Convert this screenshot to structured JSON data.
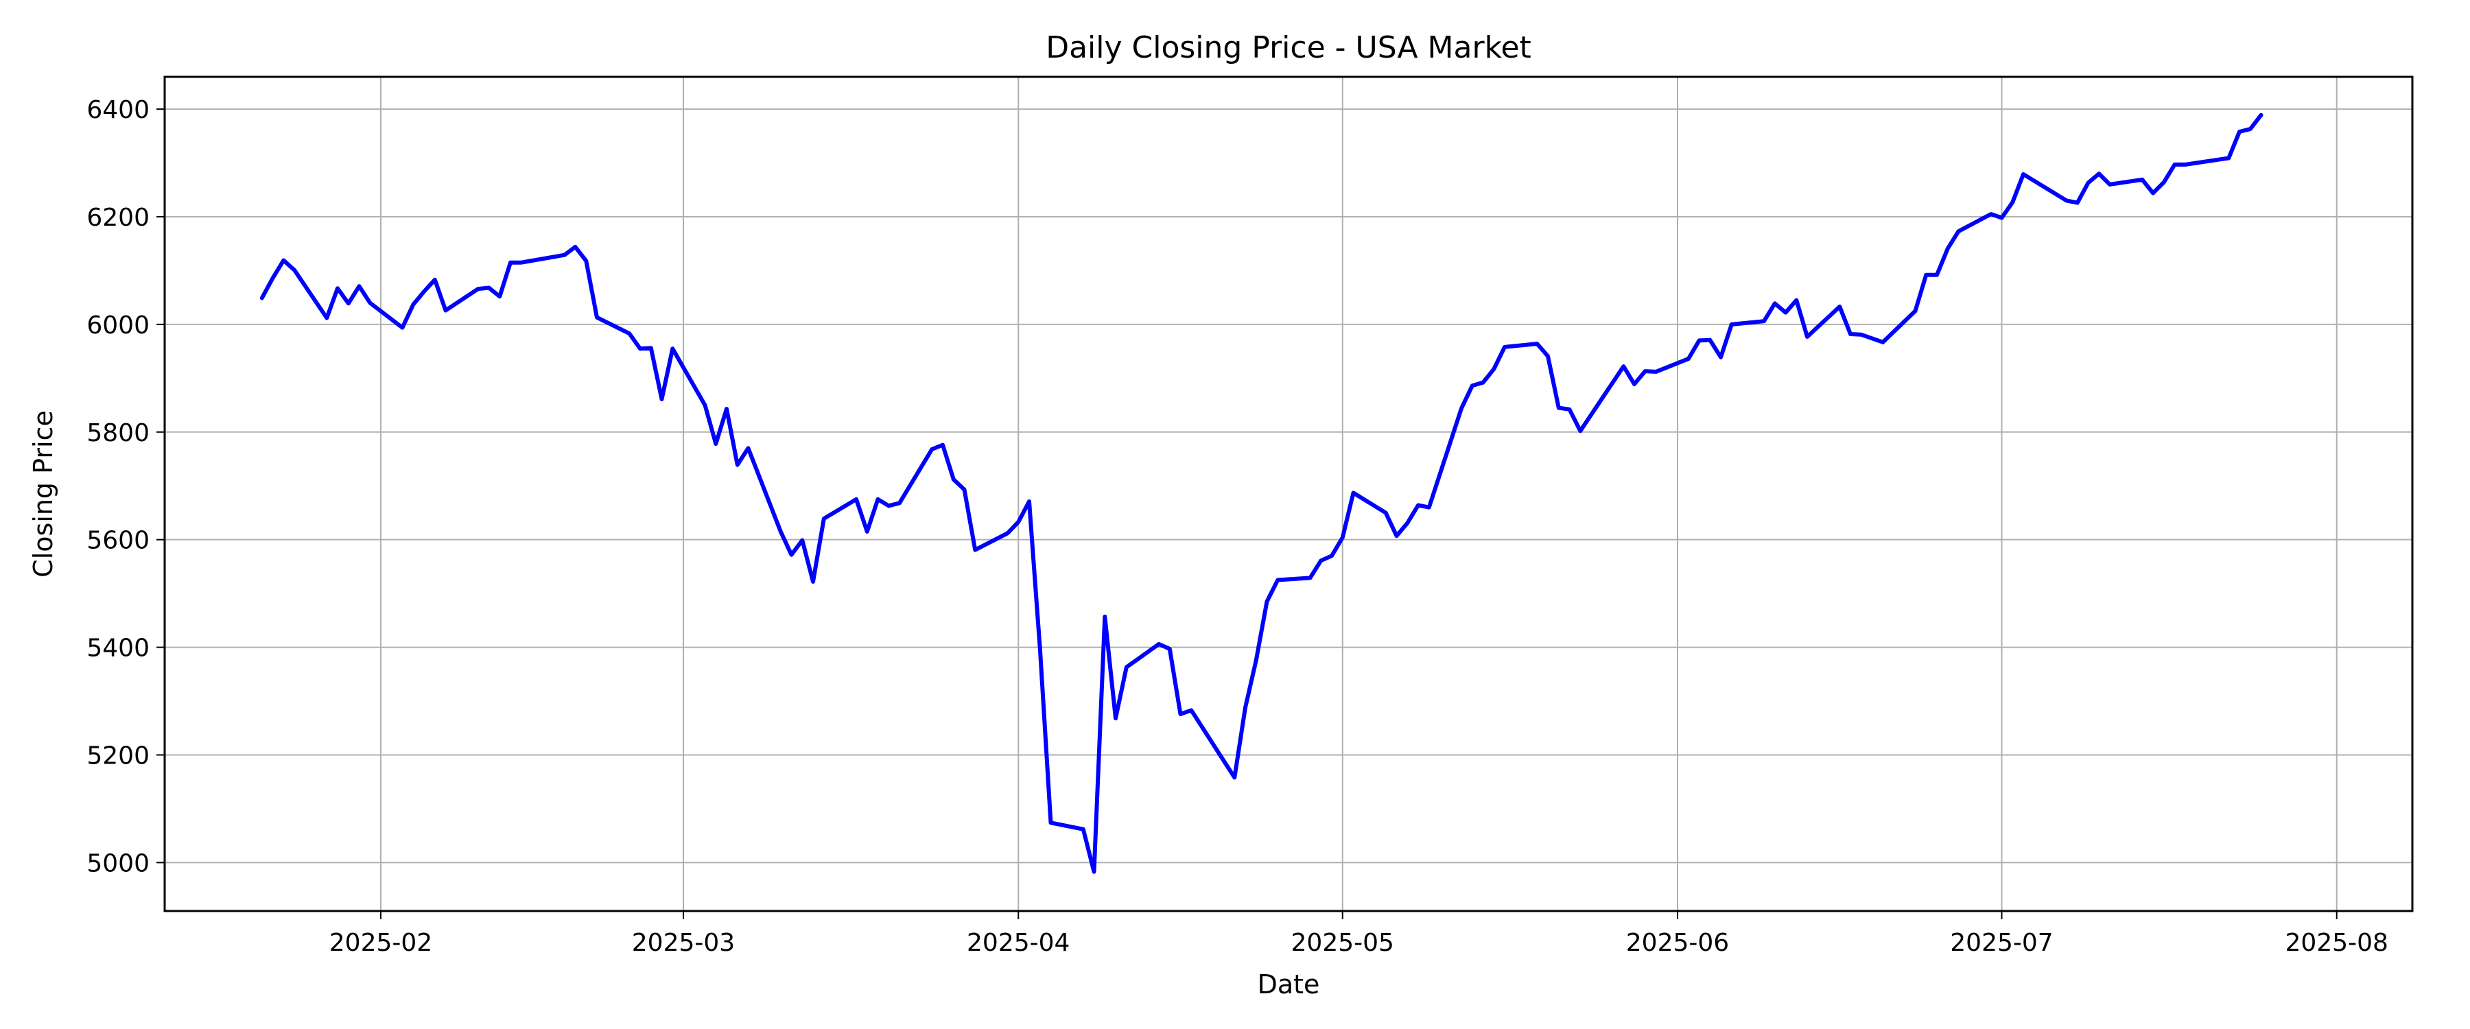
{
  "chart_data": {
    "type": "line",
    "title": "Daily Closing Price - USA Market",
    "xlabel": "Date",
    "ylabel": "Closing Price",
    "xlim": [
      "2025-01-12",
      "2025-08-08"
    ],
    "ylim": [
      4910,
      6460
    ],
    "grid": true,
    "line_color": "#0000ff",
    "x_ticks": [
      "2025-02-01",
      "2025-03-01",
      "2025-04-01",
      "2025-05-01",
      "2025-06-01",
      "2025-07-01",
      "2025-08-01"
    ],
    "x_tick_labels": [
      "2025-02",
      "2025-03",
      "2025-04",
      "2025-05",
      "2025-06",
      "2025-07",
      "2025-08"
    ],
    "y_ticks": [
      5000,
      5200,
      5400,
      5600,
      5800,
      6000,
      6200,
      6400
    ],
    "series": [
      {
        "points": [
          [
            "2025-01-21",
            6049
          ],
          [
            "2025-01-22",
            6086
          ],
          [
            "2025-01-23",
            6119
          ],
          [
            "2025-01-24",
            6101
          ],
          [
            "2025-01-27",
            6012
          ],
          [
            "2025-01-28",
            6067
          ],
          [
            "2025-01-29",
            6039
          ],
          [
            "2025-01-30",
            6071
          ],
          [
            "2025-01-31",
            6040
          ],
          [
            "2025-02-03",
            5994
          ],
          [
            "2025-02-04",
            6037
          ],
          [
            "2025-02-05",
            6061
          ],
          [
            "2025-02-06",
            6083
          ],
          [
            "2025-02-07",
            6026
          ],
          [
            "2025-02-10",
            6066
          ],
          [
            "2025-02-11",
            6068
          ],
          [
            "2025-02-12",
            6052
          ],
          [
            "2025-02-13",
            6115
          ],
          [
            "2025-02-14",
            6115
          ],
          [
            "2025-02-18",
            6129
          ],
          [
            "2025-02-19",
            6144
          ],
          [
            "2025-02-20",
            6118
          ],
          [
            "2025-02-21",
            6013
          ],
          [
            "2025-02-24",
            5983
          ],
          [
            "2025-02-25",
            5955
          ],
          [
            "2025-02-26",
            5956
          ],
          [
            "2025-02-27",
            5861
          ],
          [
            "2025-02-28",
            5955
          ],
          [
            "2025-03-03",
            5850
          ],
          [
            "2025-03-04",
            5778
          ],
          [
            "2025-03-05",
            5843
          ],
          [
            "2025-03-06",
            5739
          ],
          [
            "2025-03-07",
            5770
          ],
          [
            "2025-03-10",
            5615
          ],
          [
            "2025-03-11",
            5572
          ],
          [
            "2025-03-12",
            5599
          ],
          [
            "2025-03-13",
            5522
          ],
          [
            "2025-03-14",
            5639
          ],
          [
            "2025-03-17",
            5675
          ],
          [
            "2025-03-18",
            5615
          ],
          [
            "2025-03-19",
            5675
          ],
          [
            "2025-03-20",
            5663
          ],
          [
            "2025-03-21",
            5668
          ],
          [
            "2025-03-24",
            5768
          ],
          [
            "2025-03-25",
            5776
          ],
          [
            "2025-03-26",
            5712
          ],
          [
            "2025-03-27",
            5693
          ],
          [
            "2025-03-28",
            5581
          ],
          [
            "2025-03-31",
            5612
          ],
          [
            "2025-04-01",
            5633
          ],
          [
            "2025-04-02",
            5671
          ],
          [
            "2025-04-03",
            5397
          ],
          [
            "2025-04-04",
            5074
          ],
          [
            "2025-04-07",
            5062
          ],
          [
            "2025-04-08",
            4983
          ],
          [
            "2025-04-09",
            5457
          ],
          [
            "2025-04-10",
            5268
          ],
          [
            "2025-04-11",
            5363
          ],
          [
            "2025-04-14",
            5406
          ],
          [
            "2025-04-15",
            5397
          ],
          [
            "2025-04-16",
            5276
          ],
          [
            "2025-04-17",
            5283
          ],
          [
            "2025-04-21",
            5158
          ],
          [
            "2025-04-22",
            5288
          ],
          [
            "2025-04-23",
            5376
          ],
          [
            "2025-04-24",
            5485
          ],
          [
            "2025-04-25",
            5525
          ],
          [
            "2025-04-28",
            5529
          ],
          [
            "2025-04-29",
            5561
          ],
          [
            "2025-04-30",
            5570
          ],
          [
            "2025-05-01",
            5604
          ],
          [
            "2025-05-02",
            5687
          ],
          [
            "2025-05-05",
            5650
          ],
          [
            "2025-05-06",
            5607
          ],
          [
            "2025-05-07",
            5631
          ],
          [
            "2025-05-08",
            5664
          ],
          [
            "2025-05-09",
            5660
          ],
          [
            "2025-05-12",
            5844
          ],
          [
            "2025-05-13",
            5886
          ],
          [
            "2025-05-14",
            5892
          ],
          [
            "2025-05-15",
            5917
          ],
          [
            "2025-05-16",
            5958
          ],
          [
            "2025-05-19",
            5964
          ],
          [
            "2025-05-20",
            5941
          ],
          [
            "2025-05-21",
            5845
          ],
          [
            "2025-05-22",
            5842
          ],
          [
            "2025-05-23",
            5802
          ],
          [
            "2025-05-27",
            5922
          ],
          [
            "2025-05-28",
            5889
          ],
          [
            "2025-05-29",
            5913
          ],
          [
            "2025-05-30",
            5912
          ],
          [
            "2025-06-02",
            5936
          ],
          [
            "2025-06-03",
            5970
          ],
          [
            "2025-06-04",
            5971
          ],
          [
            "2025-06-05",
            5939
          ],
          [
            "2025-06-06",
            6000
          ],
          [
            "2025-06-09",
            6006
          ],
          [
            "2025-06-10",
            6039
          ],
          [
            "2025-06-11",
            6022
          ],
          [
            "2025-06-12",
            6045
          ],
          [
            "2025-06-13",
            5977
          ],
          [
            "2025-06-16",
            6033
          ],
          [
            "2025-06-17",
            5982
          ],
          [
            "2025-06-18",
            5981
          ],
          [
            "2025-06-20",
            5967
          ],
          [
            "2025-06-23",
            6025
          ],
          [
            "2025-06-24",
            6092
          ],
          [
            "2025-06-25",
            6092
          ],
          [
            "2025-06-26",
            6141
          ],
          [
            "2025-06-27",
            6173
          ],
          [
            "2025-06-30",
            6205
          ],
          [
            "2025-07-01",
            6198
          ],
          [
            "2025-07-02",
            6227
          ],
          [
            "2025-07-03",
            6279
          ],
          [
            "2025-07-07",
            6230
          ],
          [
            "2025-07-08",
            6226
          ],
          [
            "2025-07-09",
            6263
          ],
          [
            "2025-07-10",
            6280
          ],
          [
            "2025-07-11",
            6260
          ],
          [
            "2025-07-14",
            6269
          ],
          [
            "2025-07-15",
            6244
          ],
          [
            "2025-07-16",
            6264
          ],
          [
            "2025-07-17",
            6297
          ],
          [
            "2025-07-18",
            6297
          ],
          [
            "2025-07-21",
            6306
          ],
          [
            "2025-07-22",
            6309
          ],
          [
            "2025-07-23",
            6358
          ],
          [
            "2025-07-24",
            6363
          ],
          [
            "2025-07-25",
            6389
          ]
        ]
      }
    ]
  }
}
